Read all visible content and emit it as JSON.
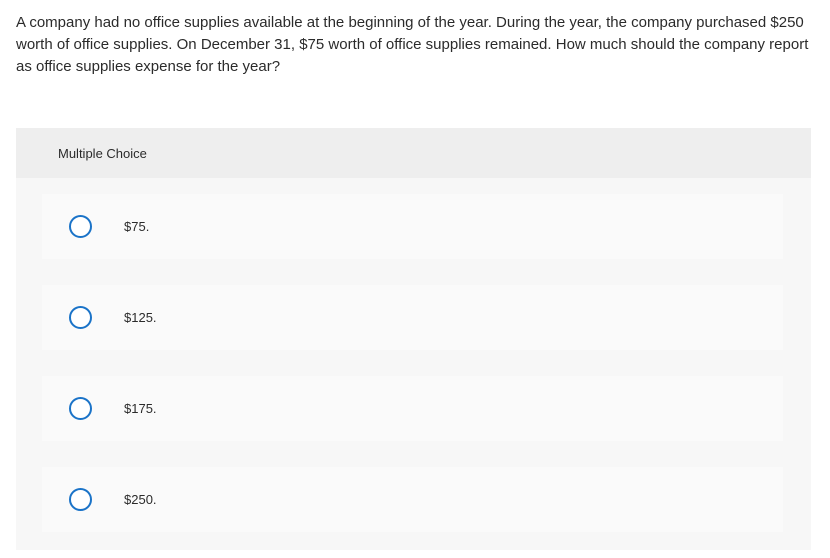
{
  "question": {
    "text": "A company had no office supplies available at the beginning of the year. During the year, the company purchased $250 worth of office supplies. On December 31, $75 worth of office supplies remained. How much should the company report as office supplies expense for the year?"
  },
  "multiple_choice": {
    "header": "Multiple Choice",
    "options": [
      {
        "label": "$75."
      },
      {
        "label": "$125."
      },
      {
        "label": "$175."
      },
      {
        "label": "$250."
      }
    ]
  },
  "colors": {
    "radio_border": "#1a73c8",
    "panel_background": "#f7f7f7",
    "header_background": "#eeeeee"
  }
}
